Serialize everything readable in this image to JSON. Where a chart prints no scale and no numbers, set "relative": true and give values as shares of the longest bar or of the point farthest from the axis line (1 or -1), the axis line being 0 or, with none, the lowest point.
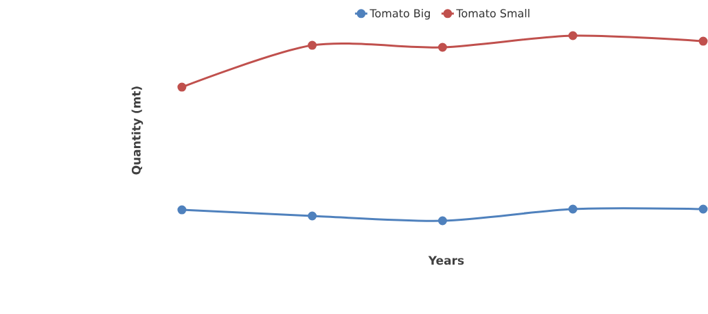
{
  "chart_data": {
    "type": "line",
    "xlabel": "Years",
    "ylabel": "Quantity (mt)",
    "relative": true,
    "legend": "top",
    "marker": "circle",
    "categories": [
      null,
      null,
      null,
      null,
      null
    ],
    "series": [
      {
        "name": "Tomato Big",
        "color": "#4f81bd",
        "values": [
          0.059,
          0.026,
          0,
          0.063,
          0.063
        ]
      },
      {
        "name": "Tomato Small",
        "color": "#c0504d",
        "values": [
          0.722,
          0.948,
          0.937,
          1,
          0.97
        ]
      }
    ]
  }
}
